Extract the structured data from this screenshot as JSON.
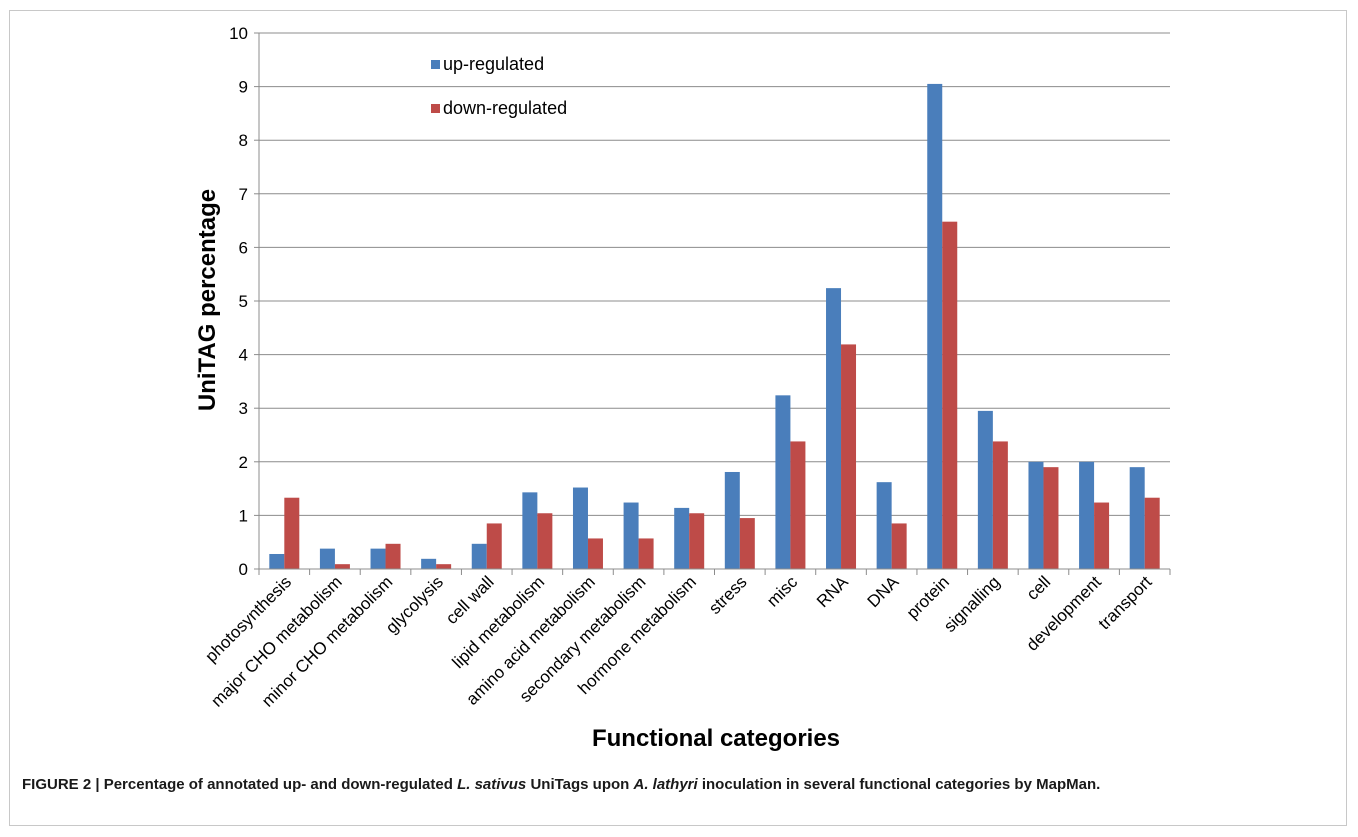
{
  "chart_data": {
    "type": "bar",
    "title": "",
    "xlabel": "Functional categories",
    "ylabel": "UniTAG percentage",
    "ylim": [
      0,
      10
    ],
    "yticks": [
      "0",
      "1",
      "2",
      "3",
      "4",
      "5",
      "6",
      "7",
      "8",
      "9",
      "10"
    ],
    "grid": true,
    "legend_position": "top-left",
    "categories": [
      "photosynthesis",
      "major CHO metabolism",
      "minor CHO metabolism",
      "glycolysis",
      "cell wall",
      "lipid metabolism",
      "amino acid metabolism",
      "secondary metabolism",
      "hormone metabolism",
      "stress",
      "misc",
      "RNA",
      "DNA",
      "protein",
      "signalling",
      "cell",
      "development",
      "transport"
    ],
    "series": [
      {
        "name": "up-regulated",
        "color": "#4a7ebb",
        "values": [
          0.28,
          0.38,
          0.38,
          0.19,
          0.47,
          1.43,
          1.52,
          1.24,
          1.14,
          1.81,
          3.24,
          5.24,
          1.62,
          9.05,
          2.95,
          2.0,
          2.0,
          1.9
        ]
      },
      {
        "name": "down-regulated",
        "color": "#be4b48",
        "values": [
          1.33,
          0.09,
          0.47,
          0.09,
          0.85,
          1.04,
          0.57,
          0.57,
          1.04,
          0.95,
          2.38,
          4.19,
          0.85,
          6.48,
          2.38,
          1.9,
          1.24,
          1.33
        ]
      }
    ]
  },
  "caption": {
    "part1": "FIGURE 2 | Percentage of annotated up- and down-regulated ",
    "species1": "L. sativus",
    "part2": " UniTags upon ",
    "species2": "A. lathyri",
    "part3": " inoculation in several functional categories by MapMan."
  }
}
